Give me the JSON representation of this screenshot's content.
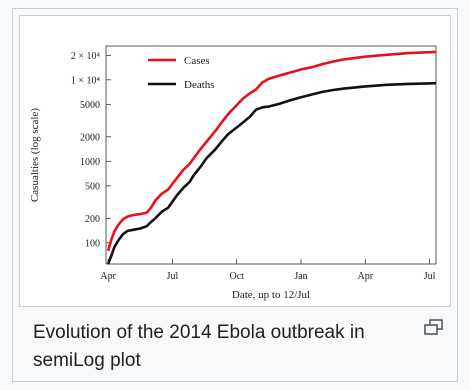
{
  "caption": "Evolution of the 2014 Ebola outbreak in semiLog plot",
  "enlarge_icon": "enlarge-icon",
  "chart_data": {
    "type": "line",
    "title": "",
    "xlabel": "Date, up to 12/Jul",
    "ylabel": "Casualties (log scale)",
    "y_scale": "log",
    "x_ticks": [
      "Apr",
      "Jul",
      "Oct",
      "Jan",
      "Apr",
      "Jul"
    ],
    "x_tick_months": [
      0,
      3,
      6,
      9,
      12,
      15
    ],
    "xlim": [
      -0.1,
      15.3
    ],
    "ylim": [
      55,
      26000
    ],
    "y_ticks": [
      {
        "value": 20000,
        "label": "2 × 10⁴"
      },
      {
        "value": 10000,
        "label": "1 × 10⁴"
      },
      {
        "value": 5000,
        "label": "5000"
      },
      {
        "value": 2000,
        "label": "2000"
      },
      {
        "value": 1000,
        "label": "1000"
      },
      {
        "value": 500,
        "label": "500"
      },
      {
        "value": 200,
        "label": "200"
      },
      {
        "value": 100,
        "label": "100"
      }
    ],
    "legend_position": "top-left",
    "grid": false,
    "series": [
      {
        "name": "Cases",
        "color": "#e8101a",
        "points": [
          [
            0.0,
            80
          ],
          [
            0.15,
            110
          ],
          [
            0.3,
            140
          ],
          [
            0.5,
            170
          ],
          [
            0.7,
            195
          ],
          [
            0.9,
            210
          ],
          [
            1.2,
            220
          ],
          [
            1.5,
            225
          ],
          [
            1.8,
            235
          ],
          [
            2.0,
            270
          ],
          [
            2.2,
            330
          ],
          [
            2.5,
            400
          ],
          [
            2.8,
            450
          ],
          [
            3.0,
            530
          ],
          [
            3.2,
            620
          ],
          [
            3.5,
            780
          ],
          [
            3.8,
            930
          ],
          [
            4.0,
            1100
          ],
          [
            4.3,
            1400
          ],
          [
            4.6,
            1750
          ],
          [
            5.0,
            2350
          ],
          [
            5.3,
            3000
          ],
          [
            5.6,
            3800
          ],
          [
            6.0,
            4900
          ],
          [
            6.3,
            5900
          ],
          [
            6.6,
            6800
          ],
          [
            6.9,
            7600
          ],
          [
            7.2,
            9300
          ],
          [
            7.5,
            10300
          ],
          [
            8.0,
            11300
          ],
          [
            8.5,
            12300
          ],
          [
            9.0,
            13400
          ],
          [
            9.5,
            14300
          ],
          [
            10.0,
            15600
          ],
          [
            10.5,
            16800
          ],
          [
            11.0,
            17800
          ],
          [
            12.0,
            19200
          ],
          [
            13.0,
            20300
          ],
          [
            14.0,
            21300
          ],
          [
            15.0,
            21800
          ],
          [
            15.3,
            22000
          ]
        ]
      },
      {
        "name": "Deaths",
        "color": "#111111",
        "points": [
          [
            0.0,
            55
          ],
          [
            0.15,
            70
          ],
          [
            0.3,
            90
          ],
          [
            0.5,
            110
          ],
          [
            0.7,
            128
          ],
          [
            0.9,
            140
          ],
          [
            1.2,
            145
          ],
          [
            1.5,
            150
          ],
          [
            1.8,
            160
          ],
          [
            2.0,
            180
          ],
          [
            2.2,
            200
          ],
          [
            2.5,
            240
          ],
          [
            2.8,
            270
          ],
          [
            3.0,
            320
          ],
          [
            3.2,
            380
          ],
          [
            3.5,
            470
          ],
          [
            3.8,
            560
          ],
          [
            4.0,
            680
          ],
          [
            4.3,
            850
          ],
          [
            4.6,
            1100
          ],
          [
            5.0,
            1400
          ],
          [
            5.3,
            1750
          ],
          [
            5.6,
            2150
          ],
          [
            6.0,
            2600
          ],
          [
            6.3,
            3000
          ],
          [
            6.6,
            3500
          ],
          [
            6.9,
            4300
          ],
          [
            7.2,
            4600
          ],
          [
            7.5,
            4700
          ],
          [
            8.0,
            5100
          ],
          [
            8.5,
            5600
          ],
          [
            9.0,
            6100
          ],
          [
            9.5,
            6600
          ],
          [
            10.0,
            7100
          ],
          [
            10.5,
            7500
          ],
          [
            11.0,
            7800
          ],
          [
            12.0,
            8300
          ],
          [
            13.0,
            8700
          ],
          [
            14.0,
            8900
          ],
          [
            15.0,
            9050
          ],
          [
            15.3,
            9100
          ]
        ]
      }
    ]
  }
}
